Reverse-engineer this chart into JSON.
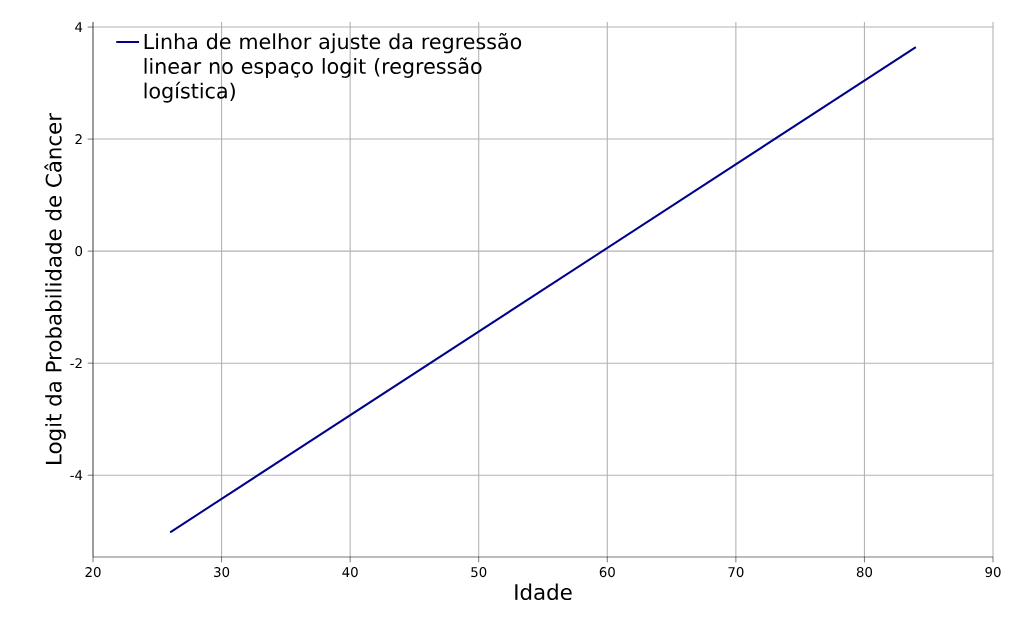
{
  "chart_data": {
    "type": "line",
    "xlabel": "Idade",
    "ylabel": "Logit da Probabilidade de Câncer",
    "x": [
      26,
      84
    ],
    "series": [
      {
        "name": "Linha de melhor ajuste da regressão linear no espaço logit (regressão logística)",
        "color": "#00008b",
        "values": [
          -5.02,
          3.64
        ]
      }
    ],
    "xlim": [
      20,
      90
    ],
    "ylim": [
      -5.46,
      4.09
    ],
    "xticks": [
      20,
      30,
      40,
      50,
      60,
      70,
      80,
      90
    ],
    "yticks": [
      -4,
      -2,
      0,
      2,
      4
    ],
    "grid": true,
    "legend": "top left",
    "marker": "none",
    "line_style": "solid"
  }
}
